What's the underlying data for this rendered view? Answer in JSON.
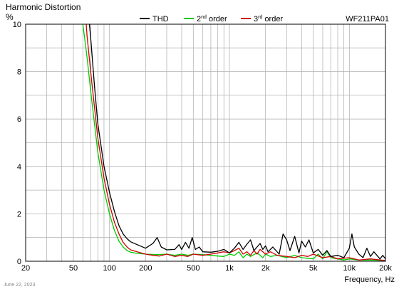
{
  "chart_data": {
    "type": "line",
    "title": "Harmonic Distortion",
    "model": "WF211PA01",
    "ylabel": "%",
    "xlabel": "Frequency, Hz",
    "date": "June 22, 2023",
    "x_scale": "log",
    "xlim": [
      20,
      20000
    ],
    "ylim": [
      0,
      10
    ],
    "grid": true,
    "legend_position": "top",
    "y_ticks": [
      "0",
      "2",
      "4",
      "6",
      "8",
      "10"
    ],
    "x_ticks": [
      {
        "value": 20,
        "label": "20"
      },
      {
        "value": 50,
        "label": "50"
      },
      {
        "value": 100,
        "label": "100"
      },
      {
        "value": 200,
        "label": "200"
      },
      {
        "value": 500,
        "label": "500"
      },
      {
        "value": 1000,
        "label": "1k"
      },
      {
        "value": 2000,
        "label": "2k"
      },
      {
        "value": 5000,
        "label": "5k"
      },
      {
        "value": 10000,
        "label": "10k"
      },
      {
        "value": 20000,
        "label": "20k"
      }
    ],
    "series": [
      {
        "name": "THD",
        "sup": "",
        "color": "#000000",
        "points": [
          [
            68,
            10
          ],
          [
            70,
            9.3
          ],
          [
            75,
            7.4
          ],
          [
            80,
            5.8
          ],
          [
            90,
            4.0
          ],
          [
            100,
            2.9
          ],
          [
            110,
            2.1
          ],
          [
            120,
            1.5
          ],
          [
            130,
            1.15
          ],
          [
            140,
            0.95
          ],
          [
            150,
            0.82
          ],
          [
            170,
            0.7
          ],
          [
            200,
            0.55
          ],
          [
            230,
            0.75
          ],
          [
            250,
            1.0
          ],
          [
            270,
            0.6
          ],
          [
            300,
            0.48
          ],
          [
            350,
            0.5
          ],
          [
            380,
            0.7
          ],
          [
            400,
            0.5
          ],
          [
            430,
            0.8
          ],
          [
            460,
            0.55
          ],
          [
            490,
            1.0
          ],
          [
            520,
            0.5
          ],
          [
            560,
            0.6
          ],
          [
            600,
            0.4
          ],
          [
            700,
            0.38
          ],
          [
            800,
            0.42
          ],
          [
            900,
            0.5
          ],
          [
            1000,
            0.35
          ],
          [
            1100,
            0.55
          ],
          [
            1200,
            0.8
          ],
          [
            1300,
            0.5
          ],
          [
            1400,
            0.72
          ],
          [
            1500,
            0.9
          ],
          [
            1600,
            0.45
          ],
          [
            1700,
            0.6
          ],
          [
            1800,
            0.75
          ],
          [
            1900,
            0.5
          ],
          [
            2000,
            0.65
          ],
          [
            2100,
            0.4
          ],
          [
            2300,
            0.6
          ],
          [
            2600,
            0.3
          ],
          [
            2800,
            1.15
          ],
          [
            3000,
            0.9
          ],
          [
            3200,
            0.45
          ],
          [
            3500,
            1.05
          ],
          [
            3800,
            0.35
          ],
          [
            4000,
            0.85
          ],
          [
            4300,
            0.6
          ],
          [
            4600,
            0.9
          ],
          [
            5000,
            0.35
          ],
          [
            5500,
            0.5
          ],
          [
            6000,
            0.25
          ],
          [
            6500,
            0.45
          ],
          [
            7000,
            0.2
          ],
          [
            8000,
            0.25
          ],
          [
            9000,
            0.15
          ],
          [
            10000,
            0.55
          ],
          [
            10500,
            1.15
          ],
          [
            11000,
            0.6
          ],
          [
            12000,
            0.3
          ],
          [
            13000,
            0.15
          ],
          [
            14000,
            0.55
          ],
          [
            15000,
            0.2
          ],
          [
            16000,
            0.4
          ],
          [
            18000,
            0.1
          ],
          [
            19000,
            0.25
          ],
          [
            20000,
            0.1
          ]
        ]
      },
      {
        "name": "2",
        "sup": "nd",
        "suffix": " order",
        "color": "#00cc00",
        "points": [
          [
            60,
            10
          ],
          [
            65,
            8.6
          ],
          [
            70,
            7.1
          ],
          [
            75,
            5.8
          ],
          [
            80,
            4.6
          ],
          [
            90,
            3.0
          ],
          [
            100,
            2.0
          ],
          [
            110,
            1.3
          ],
          [
            120,
            0.85
          ],
          [
            130,
            0.6
          ],
          [
            140,
            0.45
          ],
          [
            150,
            0.38
          ],
          [
            170,
            0.33
          ],
          [
            200,
            0.3
          ],
          [
            250,
            0.28
          ],
          [
            300,
            0.3
          ],
          [
            350,
            0.25
          ],
          [
            400,
            0.3
          ],
          [
            450,
            0.25
          ],
          [
            500,
            0.3
          ],
          [
            600,
            0.28
          ],
          [
            700,
            0.25
          ],
          [
            800,
            0.22
          ],
          [
            900,
            0.2
          ],
          [
            1000,
            0.3
          ],
          [
            1100,
            0.25
          ],
          [
            1200,
            0.4
          ],
          [
            1300,
            0.15
          ],
          [
            1400,
            0.3
          ],
          [
            1500,
            0.2
          ],
          [
            1700,
            0.35
          ],
          [
            1900,
            0.15
          ],
          [
            2000,
            0.3
          ],
          [
            2200,
            0.2
          ],
          [
            2500,
            0.25
          ],
          [
            3000,
            0.15
          ],
          [
            3500,
            0.25
          ],
          [
            4000,
            0.15
          ],
          [
            5000,
            0.1
          ],
          [
            5500,
            0.3
          ],
          [
            6000,
            0.1
          ],
          [
            6500,
            0.4
          ],
          [
            7000,
            0.15
          ],
          [
            8000,
            0.1
          ],
          [
            9000,
            0.05
          ],
          [
            10000,
            0.1
          ],
          [
            12000,
            0.05
          ],
          [
            15000,
            0.05
          ],
          [
            20000,
            0.03
          ]
        ]
      },
      {
        "name": "3",
        "sup": "rd",
        "suffix": " order",
        "color": "#cc0000",
        "points": [
          [
            64,
            10
          ],
          [
            65,
            9.5
          ],
          [
            70,
            7.9
          ],
          [
            75,
            6.5
          ],
          [
            80,
            5.2
          ],
          [
            90,
            3.5
          ],
          [
            100,
            2.4
          ],
          [
            110,
            1.65
          ],
          [
            120,
            1.15
          ],
          [
            130,
            0.8
          ],
          [
            140,
            0.6
          ],
          [
            150,
            0.48
          ],
          [
            170,
            0.4
          ],
          [
            200,
            0.3
          ],
          [
            230,
            0.25
          ],
          [
            260,
            0.22
          ],
          [
            300,
            0.3
          ],
          [
            350,
            0.2
          ],
          [
            400,
            0.25
          ],
          [
            450,
            0.2
          ],
          [
            500,
            0.3
          ],
          [
            600,
            0.25
          ],
          [
            700,
            0.3
          ],
          [
            800,
            0.35
          ],
          [
            900,
            0.4
          ],
          [
            1000,
            0.35
          ],
          [
            1100,
            0.45
          ],
          [
            1200,
            0.55
          ],
          [
            1300,
            0.3
          ],
          [
            1400,
            0.4
          ],
          [
            1500,
            0.25
          ],
          [
            1600,
            0.45
          ],
          [
            1700,
            0.3
          ],
          [
            1800,
            0.5
          ],
          [
            2000,
            0.3
          ],
          [
            2200,
            0.4
          ],
          [
            2500,
            0.25
          ],
          [
            3000,
            0.2
          ],
          [
            3500,
            0.15
          ],
          [
            4000,
            0.25
          ],
          [
            4500,
            0.2
          ],
          [
            5000,
            0.3
          ],
          [
            6000,
            0.15
          ],
          [
            7000,
            0.2
          ],
          [
            8000,
            0.1
          ],
          [
            10000,
            0.15
          ],
          [
            12000,
            0.05
          ],
          [
            15000,
            0.1
          ],
          [
            20000,
            0.03
          ]
        ]
      }
    ]
  }
}
